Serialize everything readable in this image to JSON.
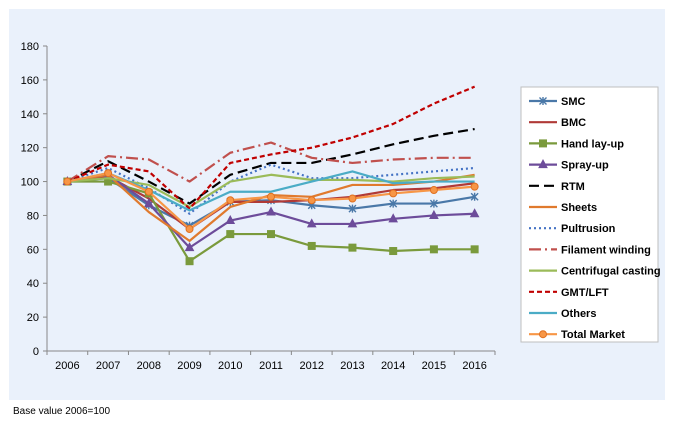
{
  "chart_data": {
    "type": "line",
    "x": [
      "2006",
      "2007",
      "2008",
      "2009",
      "2010",
      "2011",
      "2012",
      "2013",
      "2014",
      "2015",
      "2016"
    ],
    "ylim": [
      0,
      180
    ],
    "yticks": [
      0,
      20,
      40,
      60,
      80,
      100,
      120,
      140,
      160,
      180
    ],
    "grid": false,
    "legend": "right",
    "series": [
      {
        "name": "SMC",
        "color": "#4a78a8",
        "dash": "",
        "marker": "star",
        "values": [
          100,
          102,
          86,
          74,
          88,
          89,
          86,
          84,
          87,
          87,
          91
        ]
      },
      {
        "name": "BMC",
        "color": "#b03a37",
        "dash": "",
        "marker": "none",
        "values": [
          100,
          103,
          90,
          72,
          88,
          88,
          89,
          91,
          95,
          96,
          99
        ]
      },
      {
        "name": "Hand lay-up",
        "color": "#7a9a3c",
        "dash": "",
        "marker": "square",
        "values": [
          100,
          100,
          93,
          53,
          69,
          69,
          62,
          61,
          59,
          60,
          60
        ]
      },
      {
        "name": "Spray-up",
        "color": "#6d4c9a",
        "dash": "",
        "marker": "triangle",
        "values": [
          100,
          104,
          87,
          61,
          77,
          82,
          75,
          75,
          78,
          80,
          81
        ]
      },
      {
        "name": "RTM",
        "color": "#000000",
        "dash": "10,5",
        "marker": "none",
        "values": [
          100,
          112,
          100,
          87,
          104,
          111,
          111,
          116,
          122,
          127,
          131
        ]
      },
      {
        "name": "Sheets",
        "color": "#e07a2e",
        "dash": "",
        "marker": "none",
        "values": [
          100,
          104,
          82,
          65,
          85,
          92,
          91,
          98,
          98,
          100,
          104
        ]
      },
      {
        "name": "Pultrusion",
        "color": "#4472c4",
        "dash": "2,3",
        "marker": "none",
        "values": [
          100,
          108,
          96,
          81,
          100,
          110,
          102,
          102,
          104,
          106,
          108
        ]
      },
      {
        "name": "Filament winding",
        "color": "#c0504d",
        "dash": "12,4,2,4",
        "marker": "none",
        "values": [
          100,
          115,
          113,
          100,
          117,
          123,
          114,
          111,
          113,
          114,
          114
        ]
      },
      {
        "name": "Centrifugal casting",
        "color": "#9bbb59",
        "dash": "",
        "marker": "none",
        "values": [
          100,
          102,
          98,
          85,
          100,
          104,
          101,
          101,
          100,
          102,
          103
        ]
      },
      {
        "name": "GMT/LFT",
        "color": "#c00000",
        "dash": "5,3",
        "marker": "none",
        "values": [
          100,
          110,
          106,
          84,
          111,
          116,
          120,
          126,
          134,
          146,
          156
        ]
      },
      {
        "name": "Others",
        "color": "#4bacc6",
        "dash": "",
        "marker": "none",
        "values": [
          100,
          105,
          95,
          83,
          94,
          94,
          100,
          106,
          99,
          100,
          100
        ]
      },
      {
        "name": "Total Market",
        "color": "#f79646",
        "dash": "",
        "marker": "circle",
        "values": [
          100,
          105,
          94,
          72,
          89,
          91,
          89,
          90,
          93,
          95,
          97
        ]
      }
    ]
  },
  "footnote": "Base value 2006=100"
}
